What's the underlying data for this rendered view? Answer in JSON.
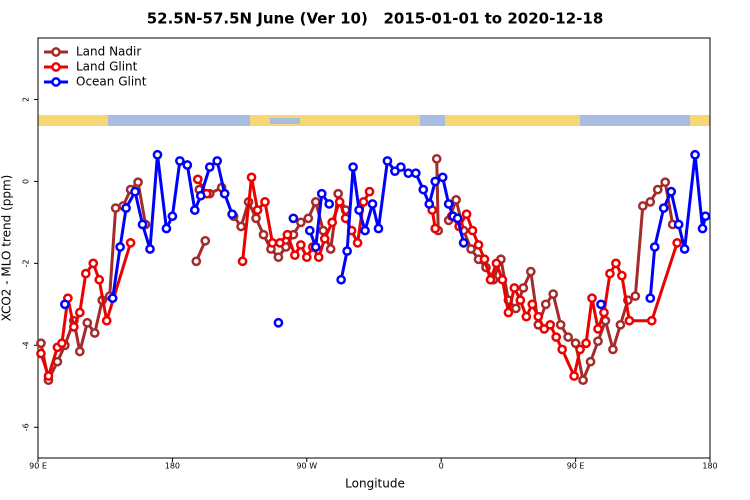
{
  "chart_data": {
    "type": "line",
    "title": "52.5N-57.5N June (Ver 10)   2015-01-01 to 2020-12-18",
    "x_label": "Longitude",
    "y_label": "XCO2 - MLO trend (ppm)",
    "xlim": [
      90,
      540
    ],
    "xticks": [
      {
        "value": 90,
        "label": "90 E"
      },
      {
        "value": 180,
        "label": "180"
      },
      {
        "value": 270,
        "label": "90 W"
      },
      {
        "value": 360,
        "label": "0"
      },
      {
        "value": 450,
        "label": "90 E"
      },
      {
        "value": 540,
        "label": "180"
      }
    ],
    "ylim": [
      -6.75,
      3.5
    ],
    "yticks": [
      2,
      0,
      -2,
      -4,
      -6
    ],
    "legend": "top-left",
    "series": [
      {
        "name": "Land Nadir",
        "color": "#a52a2a",
        "x": [
          92,
          97,
          103,
          108,
          114,
          118,
          123,
          128,
          133,
          138,
          142,
          147,
          152,
          157,
          162,
          null,
          196,
          202,
          null,
          198,
          205,
          213,
          null,
          221,
          226,
          231,
          236,
          241,
          246,
          251,
          256,
          261,
          266,
          271,
          276,
          281,
          286,
          291,
          296,
          null,
          357,
          358,
          null,
          365,
          370,
          375,
          380,
          385,
          390,
          395,
          400,
          405,
          410,
          415,
          420,
          425,
          430,
          435,
          440,
          445,
          450,
          455,
          460,
          465,
          470,
          475,
          480,
          485,
          490,
          495,
          500,
          505,
          510,
          515
        ],
        "values": [
          -3.95,
          -4.85,
          -4.4,
          -4.0,
          -3.4,
          -4.15,
          -3.45,
          -3.7,
          -2.9,
          -2.8,
          -0.65,
          -0.6,
          -0.2,
          -0.02,
          -1.05,
          null,
          -1.95,
          -1.45,
          null,
          -0.2,
          -0.3,
          -0.15,
          null,
          -0.85,
          -1.1,
          -0.5,
          -0.9,
          -1.3,
          -1.65,
          -1.85,
          -1.6,
          -1.3,
          -1.0,
          -0.9,
          -0.5,
          -1.2,
          -1.65,
          -0.3,
          -0.7,
          null,
          0.55,
          -1.2,
          null,
          -0.95,
          -0.45,
          -1.2,
          -1.65,
          -1.9,
          -2.1,
          -2.4,
          -1.9,
          -2.9,
          -3.1,
          -2.6,
          -2.2,
          -3.5,
          -3.0,
          -2.75,
          -3.5,
          -3.8,
          -3.95,
          -4.85,
          -4.4,
          -3.9,
          -3.4,
          -4.1,
          -3.5,
          -2.9,
          -2.8,
          -0.6,
          -0.5,
          -0.2,
          -0.02,
          -1.05
        ]
      },
      {
        "name": "Land Glint",
        "color": "#ee0000",
        "x": [
          92,
          97,
          103,
          106,
          110,
          114,
          118,
          122,
          127,
          131,
          136,
          152,
          null,
          197,
          203,
          null,
          227,
          233,
          237,
          242,
          247,
          252,
          257,
          262,
          266,
          270,
          274,
          278,
          282,
          287,
          292,
          296,
          300,
          304,
          308,
          312,
          null,
          354,
          356,
          null,
          367,
          372,
          377,
          381,
          385,
          389,
          393,
          397,
          401,
          405,
          409,
          413,
          417,
          421,
          425,
          429,
          433,
          437,
          441,
          449,
          453,
          457,
          461,
          465,
          469,
          473,
          477,
          481,
          486,
          501,
          518
        ],
        "values": [
          -4.2,
          -4.75,
          -4.05,
          -3.95,
          -2.85,
          -3.55,
          -3.2,
          -2.25,
          -2.0,
          -2.4,
          -3.4,
          -1.5,
          null,
          0.05,
          -0.3,
          null,
          -1.95,
          0.1,
          -0.7,
          -0.5,
          -1.5,
          -1.5,
          -1.3,
          -1.8,
          -1.55,
          -1.85,
          -1.6,
          -1.85,
          -1.4,
          -1.0,
          -0.5,
          -0.9,
          -1.2,
          -1.5,
          -0.5,
          -0.25,
          null,
          -0.7,
          -1.15,
          null,
          -0.85,
          -1.1,
          -0.8,
          -1.2,
          -1.55,
          -1.9,
          -2.4,
          -2.0,
          -2.4,
          -3.2,
          -2.6,
          -2.9,
          -3.3,
          -3.0,
          -3.3,
          -3.6,
          -3.5,
          -3.8,
          -4.1,
          -4.75,
          -4.1,
          -3.95,
          -2.85,
          -3.6,
          -3.2,
          -2.25,
          -2.0,
          -2.3,
          -3.4,
          -3.4,
          -1.5
        ]
      },
      {
        "name": "Ocean Glint",
        "color": "#0000ff",
        "x": [
          108,
          null,
          140,
          145,
          149,
          155,
          160,
          165,
          170,
          176,
          180,
          185,
          190,
          195,
          199,
          205,
          210,
          215,
          220,
          null,
          251,
          null,
          261,
          null,
          272,
          276,
          280,
          285,
          null,
          293,
          297,
          301,
          305,
          309,
          314,
          318,
          324,
          329,
          333,
          338,
          343,
          348,
          352,
          356,
          361,
          365,
          368,
          371,
          375,
          null,
          467,
          null,
          500,
          503,
          509,
          514,
          519,
          523,
          530,
          535,
          537
        ],
        "values": [
          -3.0,
          null,
          -2.85,
          -1.6,
          -0.65,
          -0.25,
          -1.05,
          -1.65,
          0.65,
          -1.15,
          -0.85,
          0.5,
          0.4,
          -0.7,
          -0.35,
          0.35,
          0.5,
          -0.3,
          -0.8,
          null,
          -3.45,
          null,
          -0.9,
          null,
          -1.2,
          -1.6,
          -0.3,
          -0.55,
          null,
          -2.4,
          -1.7,
          0.35,
          -0.7,
          -1.2,
          -0.55,
          -1.15,
          0.5,
          0.25,
          0.35,
          0.2,
          0.2,
          -0.2,
          -0.55,
          0.0,
          0.1,
          -0.55,
          -0.85,
          -0.9,
          -1.5,
          null,
          -3.0,
          null,
          -2.85,
          -1.6,
          -0.65,
          -0.25,
          -1.05,
          -1.65,
          0.65,
          -1.15,
          -0.85
        ]
      }
    ]
  }
}
